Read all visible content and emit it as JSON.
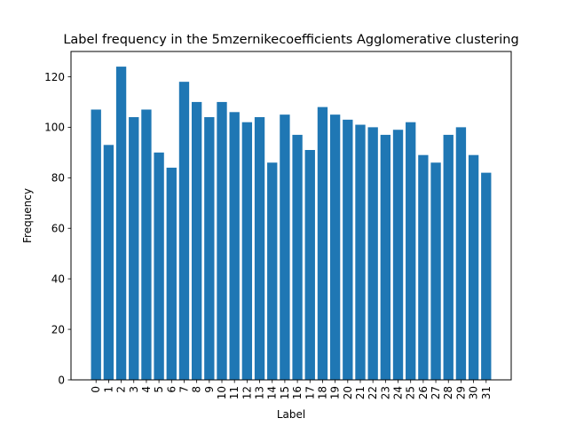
{
  "chart_data": {
    "type": "bar",
    "title": "Label frequency in the 5mzernikecoefficients Agglomerative clustering",
    "xlabel": "Label",
    "ylabel": "Frequency",
    "categories": [
      "0",
      "1",
      "2",
      "3",
      "4",
      "5",
      "6",
      "7",
      "8",
      "9",
      "10",
      "11",
      "12",
      "13",
      "14",
      "15",
      "16",
      "17",
      "18",
      "19",
      "20",
      "21",
      "22",
      "23",
      "24",
      "25",
      "26",
      "27",
      "28",
      "29",
      "30",
      "31"
    ],
    "values": [
      107,
      93,
      124,
      104,
      107,
      90,
      84,
      118,
      110,
      104,
      110,
      106,
      102,
      104,
      86,
      105,
      97,
      91,
      108,
      105,
      103,
      101,
      100,
      97,
      99,
      102,
      89,
      86,
      97,
      100,
      89,
      82
    ],
    "ylim": [
      0,
      130
    ],
    "yticks": [
      0,
      20,
      40,
      60,
      80,
      100,
      120
    ],
    "bar_color": "#1f77b4",
    "grid": false,
    "legend": false
  }
}
